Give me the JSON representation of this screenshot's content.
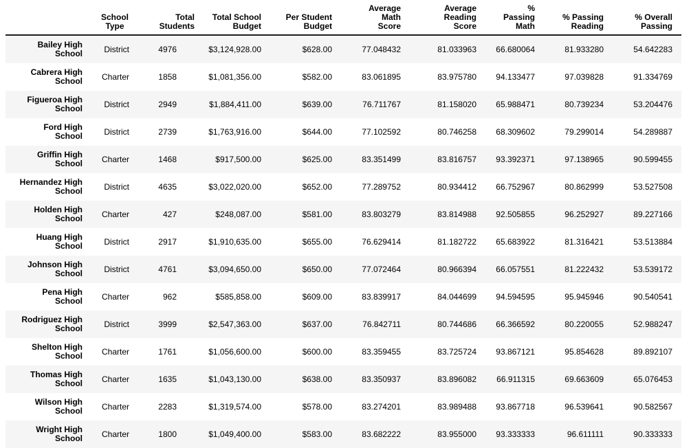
{
  "style": {
    "stripe_color": "#f5f5f5",
    "header_rule_color": "#1c1c1c",
    "text_color": "#000000",
    "background_color": "#ffffff"
  },
  "table": {
    "corner_label": "",
    "columns": [
      "School\nType",
      "Total\nStudents",
      "Total School\nBudget",
      "Per Student\nBudget",
      "Average Math\nScore",
      "Average Reading\nScore",
      "% Passing\nMath",
      "% Passing\nReading",
      "% Overall\nPassing"
    ],
    "rows": [
      {
        "school": "Bailey High School",
        "school_type": "District",
        "total_students": "4976",
        "total_school_budget": "$3,124,928.00",
        "per_student_budget": "$628.00",
        "avg_math_score": "77.048432",
        "avg_reading_score": "81.033963",
        "pct_passing_math": "66.680064",
        "pct_passing_reading": "81.933280",
        "pct_overall_passing": "54.642283"
      },
      {
        "school": "Cabrera High School",
        "school_type": "Charter",
        "total_students": "1858",
        "total_school_budget": "$1,081,356.00",
        "per_student_budget": "$582.00",
        "avg_math_score": "83.061895",
        "avg_reading_score": "83.975780",
        "pct_passing_math": "94.133477",
        "pct_passing_reading": "97.039828",
        "pct_overall_passing": "91.334769"
      },
      {
        "school": "Figueroa High School",
        "school_type": "District",
        "total_students": "2949",
        "total_school_budget": "$1,884,411.00",
        "per_student_budget": "$639.00",
        "avg_math_score": "76.711767",
        "avg_reading_score": "81.158020",
        "pct_passing_math": "65.988471",
        "pct_passing_reading": "80.739234",
        "pct_overall_passing": "53.204476"
      },
      {
        "school": "Ford High School",
        "school_type": "District",
        "total_students": "2739",
        "total_school_budget": "$1,763,916.00",
        "per_student_budget": "$644.00",
        "avg_math_score": "77.102592",
        "avg_reading_score": "80.746258",
        "pct_passing_math": "68.309602",
        "pct_passing_reading": "79.299014",
        "pct_overall_passing": "54.289887"
      },
      {
        "school": "Griffin High School",
        "school_type": "Charter",
        "total_students": "1468",
        "total_school_budget": "$917,500.00",
        "per_student_budget": "$625.00",
        "avg_math_score": "83.351499",
        "avg_reading_score": "83.816757",
        "pct_passing_math": "93.392371",
        "pct_passing_reading": "97.138965",
        "pct_overall_passing": "90.599455"
      },
      {
        "school": "Hernandez High School",
        "school_type": "District",
        "total_students": "4635",
        "total_school_budget": "$3,022,020.00",
        "per_student_budget": "$652.00",
        "avg_math_score": "77.289752",
        "avg_reading_score": "80.934412",
        "pct_passing_math": "66.752967",
        "pct_passing_reading": "80.862999",
        "pct_overall_passing": "53.527508"
      },
      {
        "school": "Holden High School",
        "school_type": "Charter",
        "total_students": "427",
        "total_school_budget": "$248,087.00",
        "per_student_budget": "$581.00",
        "avg_math_score": "83.803279",
        "avg_reading_score": "83.814988",
        "pct_passing_math": "92.505855",
        "pct_passing_reading": "96.252927",
        "pct_overall_passing": "89.227166"
      },
      {
        "school": "Huang High School",
        "school_type": "District",
        "total_students": "2917",
        "total_school_budget": "$1,910,635.00",
        "per_student_budget": "$655.00",
        "avg_math_score": "76.629414",
        "avg_reading_score": "81.182722",
        "pct_passing_math": "65.683922",
        "pct_passing_reading": "81.316421",
        "pct_overall_passing": "53.513884"
      },
      {
        "school": "Johnson High School",
        "school_type": "District",
        "total_students": "4761",
        "total_school_budget": "$3,094,650.00",
        "per_student_budget": "$650.00",
        "avg_math_score": "77.072464",
        "avg_reading_score": "80.966394",
        "pct_passing_math": "66.057551",
        "pct_passing_reading": "81.222432",
        "pct_overall_passing": "53.539172"
      },
      {
        "school": "Pena High School",
        "school_type": "Charter",
        "total_students": "962",
        "total_school_budget": "$585,858.00",
        "per_student_budget": "$609.00",
        "avg_math_score": "83.839917",
        "avg_reading_score": "84.044699",
        "pct_passing_math": "94.594595",
        "pct_passing_reading": "95.945946",
        "pct_overall_passing": "90.540541"
      },
      {
        "school": "Rodriguez High School",
        "school_type": "District",
        "total_students": "3999",
        "total_school_budget": "$2,547,363.00",
        "per_student_budget": "$637.00",
        "avg_math_score": "76.842711",
        "avg_reading_score": "80.744686",
        "pct_passing_math": "66.366592",
        "pct_passing_reading": "80.220055",
        "pct_overall_passing": "52.988247"
      },
      {
        "school": "Shelton High School",
        "school_type": "Charter",
        "total_students": "1761",
        "total_school_budget": "$1,056,600.00",
        "per_student_budget": "$600.00",
        "avg_math_score": "83.359455",
        "avg_reading_score": "83.725724",
        "pct_passing_math": "93.867121",
        "pct_passing_reading": "95.854628",
        "pct_overall_passing": "89.892107"
      },
      {
        "school": "Thomas High School",
        "school_type": "Charter",
        "total_students": "1635",
        "total_school_budget": "$1,043,130.00",
        "per_student_budget": "$638.00",
        "avg_math_score": "83.350937",
        "avg_reading_score": "83.896082",
        "pct_passing_math": "66.911315",
        "pct_passing_reading": "69.663609",
        "pct_overall_passing": "65.076453"
      },
      {
        "school": "Wilson High School",
        "school_type": "Charter",
        "total_students": "2283",
        "total_school_budget": "$1,319,574.00",
        "per_student_budget": "$578.00",
        "avg_math_score": "83.274201",
        "avg_reading_score": "83.989488",
        "pct_passing_math": "93.867718",
        "pct_passing_reading": "96.539641",
        "pct_overall_passing": "90.582567"
      },
      {
        "school": "Wright High School",
        "school_type": "Charter",
        "total_students": "1800",
        "total_school_budget": "$1,049,400.00",
        "per_student_budget": "$583.00",
        "avg_math_score": "83.682222",
        "avg_reading_score": "83.955000",
        "pct_passing_math": "93.333333",
        "pct_passing_reading": "96.611111",
        "pct_overall_passing": "90.333333"
      }
    ]
  }
}
